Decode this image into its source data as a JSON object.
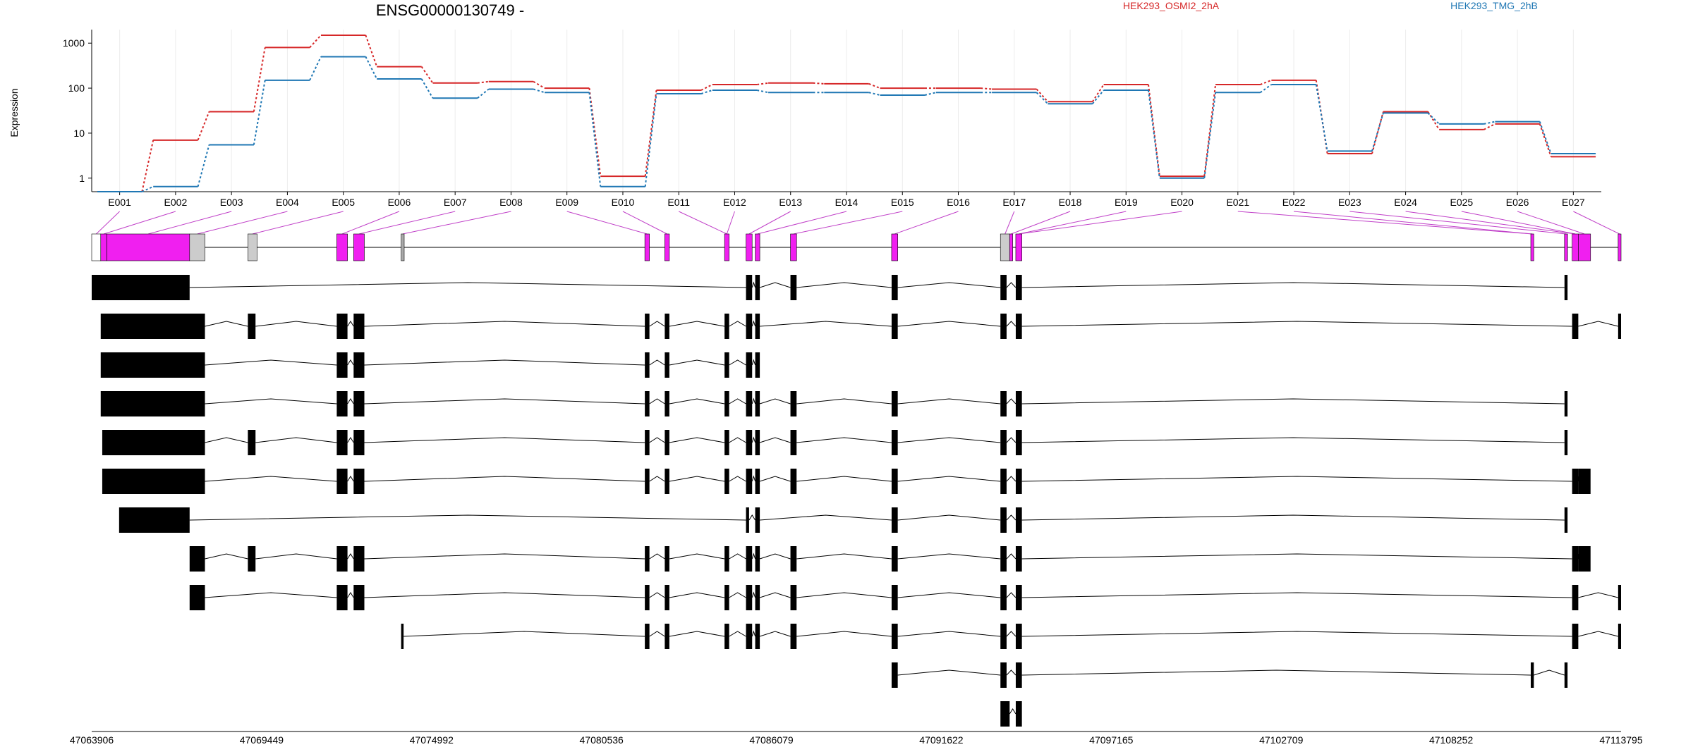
{
  "chart_data": {
    "type": "line",
    "title": "ENSG00000130749 -",
    "ylabel": "Expression",
    "y_scale": "log",
    "y_ticks": [
      1,
      10,
      100,
      1000
    ],
    "ylim": [
      0.5,
      2000
    ],
    "grid": "vertical",
    "legend_placement": "top-right",
    "categories": [
      "E001",
      "E002",
      "E003",
      "E004",
      "E005",
      "E006",
      "E007",
      "E008",
      "E009",
      "E010",
      "E011",
      "E012",
      "E013",
      "E014",
      "E015",
      "E016",
      "E017",
      "E018",
      "E019",
      "E020",
      "E021",
      "E022",
      "E023",
      "E024",
      "E025",
      "E026",
      "E027"
    ],
    "series": [
      {
        "name": "HEK293_OSMI2_2hA",
        "color": "#d62728",
        "values": [
          0.5,
          7,
          30,
          800,
          1500,
          300,
          130,
          140,
          100,
          1.1,
          90,
          120,
          130,
          125,
          100,
          100,
          95,
          50,
          120,
          1.1,
          120,
          150,
          3.5,
          30,
          12,
          16,
          3.0
        ]
      },
      {
        "name": "HEK293_TMG_2hB",
        "color": "#1f77b4",
        "values": [
          0.5,
          0.65,
          5.5,
          150,
          500,
          160,
          60,
          95,
          80,
          0.65,
          75,
          90,
          80,
          80,
          70,
          80,
          80,
          45,
          90,
          1.0,
          80,
          120,
          4.0,
          28,
          16,
          18,
          3.5
        ]
      }
    ],
    "genomic_ticks": [
      "47063906",
      "47069449",
      "47074992",
      "47080536",
      "47086079",
      "47091622",
      "47097165",
      "47102709",
      "47108252",
      "47113795"
    ],
    "genomic_range": [
      47063906,
      47113795
    ],
    "exon_bins": [
      [
        47063906,
        47064200
      ],
      [
        47064200,
        47064400
      ],
      [
        47064400,
        47067100
      ],
      [
        47067100,
        47067600
      ],
      [
        47069000,
        47069300
      ],
      [
        47071900,
        47072250
      ],
      [
        47072450,
        47072800
      ],
      [
        47074000,
        47074100
      ],
      [
        47081950,
        47082100
      ],
      [
        47082600,
        47082750
      ],
      [
        47084550,
        47084700
      ],
      [
        47085250,
        47085450
      ],
      [
        47085550,
        47085700
      ],
      [
        47086700,
        47086900
      ],
      [
        47090000,
        47090200
      ],
      [
        47093550,
        47093850
      ],
      [
        47093850,
        47093950
      ],
      [
        47094050,
        47094250
      ],
      [
        47110850,
        47110950
      ],
      [
        47111950,
        47112050
      ],
      [
        47112200,
        47112400
      ],
      [
        47112400,
        47112800
      ],
      [
        47113700,
        47113795
      ]
    ],
    "exon_links": [
      0,
      1,
      2,
      3,
      4,
      5,
      6,
      7,
      8,
      9,
      10,
      10,
      11,
      12,
      13,
      14,
      15,
      16,
      17,
      17,
      18,
      18,
      19,
      20,
      20,
      21,
      22
    ],
    "exon_colors": [
      "none",
      "#f01ff0",
      "#f01ff0",
      "#cccccc",
      "#cccccc",
      "#f01ff0",
      "#f01ff0",
      "#aaaaaa",
      "#f01ff0",
      "#f01ff0",
      "#f01ff0",
      "#f01ff0",
      "#f01ff0",
      "#f01ff0",
      "#f01ff0",
      "#cccccc",
      "#f01ff0",
      "#f01ff0",
      "#f01ff0",
      "#f01ff0",
      "#f01ff0",
      "#f01ff0",
      "#f01ff0"
    ],
    "gene_model_color": "#f01ff0",
    "transcripts": [
      [
        [
          47063906,
          47067100
        ],
        [
          47085250,
          47085450
        ],
        [
          47085550,
          47085700
        ],
        [
          47086700,
          47086900
        ],
        [
          47090000,
          47090200
        ],
        [
          47093550,
          47093750
        ],
        [
          47094050,
          47094250
        ],
        [
          47111950,
          47112050
        ]
      ],
      [
        [
          47064200,
          47067600
        ],
        [
          47069000,
          47069250
        ],
        [
          47071900,
          47072250
        ],
        [
          47072450,
          47072800
        ],
        [
          47081950,
          47082100
        ],
        [
          47082600,
          47082750
        ],
        [
          47084550,
          47084700
        ],
        [
          47085250,
          47085450
        ],
        [
          47085550,
          47085700
        ],
        [
          47090000,
          47090200
        ],
        [
          47093550,
          47093750
        ],
        [
          47094050,
          47094250
        ],
        [
          47112200,
          47112400
        ],
        [
          47113700,
          47113795
        ]
      ],
      [
        [
          47064200,
          47067600
        ],
        [
          47071900,
          47072250
        ],
        [
          47072450,
          47072800
        ],
        [
          47081950,
          47082100
        ],
        [
          47082600,
          47082750
        ],
        [
          47084550,
          47084700
        ],
        [
          47085250,
          47085450
        ],
        [
          47085550,
          47085700
        ]
      ],
      [
        [
          47064200,
          47067600
        ],
        [
          47071900,
          47072250
        ],
        [
          47072450,
          47072800
        ],
        [
          47081950,
          47082100
        ],
        [
          47082600,
          47082750
        ],
        [
          47084550,
          47084700
        ],
        [
          47085250,
          47085450
        ],
        [
          47085550,
          47085700
        ],
        [
          47086700,
          47086900
        ],
        [
          47090000,
          47090200
        ],
        [
          47093550,
          47093750
        ],
        [
          47094050,
          47094250
        ],
        [
          47111950,
          47112050
        ]
      ],
      [
        [
          47064250,
          47067600
        ],
        [
          47069000,
          47069250
        ],
        [
          47071900,
          47072250
        ],
        [
          47072450,
          47072800
        ],
        [
          47081950,
          47082100
        ],
        [
          47082600,
          47082750
        ],
        [
          47084550,
          47084700
        ],
        [
          47085250,
          47085450
        ],
        [
          47085550,
          47085700
        ],
        [
          47086700,
          47086900
        ],
        [
          47090000,
          47090200
        ],
        [
          47093550,
          47093750
        ],
        [
          47094050,
          47094250
        ],
        [
          47111950,
          47112050
        ]
      ],
      [
        [
          47064250,
          47067600
        ],
        [
          47071900,
          47072250
        ],
        [
          47072450,
          47072800
        ],
        [
          47081950,
          47082100
        ],
        [
          47082600,
          47082750
        ],
        [
          47084550,
          47084700
        ],
        [
          47085250,
          47085450
        ],
        [
          47085550,
          47085700
        ],
        [
          47086700,
          47086900
        ],
        [
          47090000,
          47090200
        ],
        [
          47093550,
          47093750
        ],
        [
          47094050,
          47094250
        ],
        [
          47112200,
          47112400
        ],
        [
          47112400,
          47112800
        ]
      ],
      [
        [
          47064800,
          47067100
        ],
        [
          47085250,
          47085350
        ],
        [
          47085550,
          47085700
        ],
        [
          47090000,
          47090200
        ],
        [
          47093550,
          47093750
        ],
        [
          47094050,
          47094250
        ],
        [
          47111950,
          47112050
        ]
      ],
      [
        [
          47067100,
          47067600
        ],
        [
          47069000,
          47069250
        ],
        [
          47071900,
          47072250
        ],
        [
          47072450,
          47072800
        ],
        [
          47081950,
          47082100
        ],
        [
          47082600,
          47082750
        ],
        [
          47084550,
          47084700
        ],
        [
          47085250,
          47085450
        ],
        [
          47085550,
          47085700
        ],
        [
          47086700,
          47086900
        ],
        [
          47090000,
          47090200
        ],
        [
          47093550,
          47093750
        ],
        [
          47094050,
          47094250
        ],
        [
          47112200,
          47112400
        ],
        [
          47112400,
          47112800
        ]
      ],
      [
        [
          47067100,
          47067600
        ],
        [
          47071900,
          47072250
        ],
        [
          47072450,
          47072800
        ],
        [
          47081950,
          47082100
        ],
        [
          47082600,
          47082750
        ],
        [
          47084550,
          47084700
        ],
        [
          47085250,
          47085450
        ],
        [
          47085550,
          47085700
        ],
        [
          47086700,
          47086900
        ],
        [
          47090000,
          47090200
        ],
        [
          47093550,
          47093750
        ],
        [
          47094050,
          47094250
        ],
        [
          47112200,
          47112400
        ],
        [
          47113700,
          47113795
        ]
      ],
      [
        [
          47074000,
          47074080
        ],
        [
          47081950,
          47082100
        ],
        [
          47082600,
          47082750
        ],
        [
          47084550,
          47084700
        ],
        [
          47085250,
          47085450
        ],
        [
          47085550,
          47085700
        ],
        [
          47086700,
          47086900
        ],
        [
          47090000,
          47090200
        ],
        [
          47093550,
          47093750
        ],
        [
          47094050,
          47094250
        ],
        [
          47112200,
          47112400
        ],
        [
          47113700,
          47113795
        ]
      ],
      [
        [
          47090000,
          47090200
        ],
        [
          47093550,
          47093750
        ],
        [
          47094050,
          47094250
        ],
        [
          47110850,
          47110950
        ],
        [
          47111950,
          47112050
        ]
      ],
      [
        [
          47093550,
          47093850
        ],
        [
          47094050,
          47094250
        ]
      ]
    ]
  }
}
